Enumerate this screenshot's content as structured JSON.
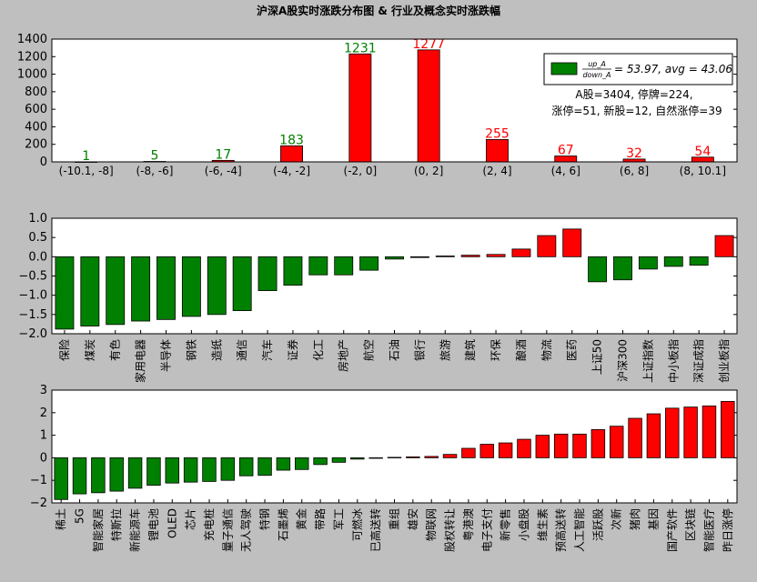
{
  "title": "沪深A股实时涨跌分布图 & 行业及概念实时涨跌幅",
  "chart_data": [
    {
      "type": "bar",
      "categories": [
        "(-10.1, -8]",
        "(-8, -6]",
        "(-6, -4]",
        "(-4, -2]",
        "(-2, 0]",
        "(0, 2]",
        "(2, 4]",
        "(4, 6]",
        "(6, 8]",
        "(8, 10.1]"
      ],
      "values": [
        1,
        5,
        17,
        183,
        1231,
        1277,
        255,
        67,
        32,
        54
      ],
      "value_labels": [
        "1",
        "5",
        "17",
        "183",
        "1231",
        "1277",
        "255",
        "67",
        "32",
        "54"
      ],
      "ylim": [
        0,
        1400
      ],
      "yticks": [
        "0",
        "200",
        "400",
        "600",
        "800",
        "1000",
        "1200",
        "1400"
      ],
      "colors": {
        "down": "#008000",
        "up": "#ff0000"
      },
      "legend": {
        "placement": "top-right",
        "formula_num": "up_A",
        "formula_den": "down_A",
        "formula_rest": "= 53.97, avg = 43.06"
      },
      "annotations": [
        "A股=3404, 停牌=224,",
        "涨停=51, 新股=12, 自然涨停=39"
      ],
      "grid": false
    },
    {
      "type": "bar",
      "categories": [
        "保险",
        "煤炭",
        "有色",
        "家用电器",
        "半导体",
        "钢铁",
        "造纸",
        "通信",
        "汽车",
        "证券",
        "化工",
        "房地产",
        "航空",
        "石油",
        "银行",
        "旅游",
        "建筑",
        "环保",
        "酿酒",
        "物流",
        "医药",
        "上证50",
        "沪深300",
        "上证指数",
        "中小板指",
        "深证成指",
        "创业板指"
      ],
      "values": [
        -1.88,
        -1.8,
        -1.76,
        -1.67,
        -1.63,
        -1.55,
        -1.5,
        -1.4,
        -0.88,
        -0.74,
        -0.47,
        -0.47,
        -0.35,
        -0.06,
        -0.02,
        0.02,
        0.04,
        0.06,
        0.2,
        0.55,
        0.72,
        -0.65,
        -0.6,
        -0.32,
        -0.25,
        -0.22,
        0.55
      ],
      "ylim": [
        -2.0,
        1.0
      ],
      "yticks": [
        "−2.0",
        "−1.5",
        "−1.0",
        "−0.5",
        "0.0",
        "0.5",
        "1.0"
      ],
      "colors": {
        "down": "#008000",
        "up": "#ff0000"
      },
      "grid": false
    },
    {
      "type": "bar",
      "categories": [
        "稀土",
        "5G",
        "智能家居",
        "特斯拉",
        "新能源车",
        "锂电池",
        "OLED",
        "芯片",
        "充电桩",
        "量子通信",
        "无人驾驶",
        "特钢",
        "石墨烯",
        "黄金",
        "带路",
        "军工",
        "可燃冰",
        "已高送转",
        "重组",
        "雄安",
        "物联网",
        "股权转让",
        "粤港澳",
        "电子支付",
        "新零售",
        "小盘股",
        "维生素",
        "预高送转",
        "人工智能",
        "活跃股",
        "次新",
        "猪肉",
        "基因",
        "国产软件",
        "区块链",
        "智能医疗",
        "昨日涨停"
      ],
      "values": [
        -1.85,
        -1.6,
        -1.55,
        -1.48,
        -1.35,
        -1.22,
        -1.12,
        -1.08,
        -1.05,
        -1.0,
        -0.8,
        -0.78,
        -0.55,
        -0.52,
        -0.3,
        -0.2,
        -0.06,
        -0.02,
        0.02,
        0.04,
        0.06,
        0.15,
        0.42,
        0.6,
        0.66,
        0.82,
        1.0,
        1.05,
        1.05,
        1.25,
        1.4,
        1.75,
        1.95,
        2.2,
        2.25,
        2.3,
        2.5
      ],
      "ylim": [
        -2,
        3
      ],
      "yticks": [
        "−2",
        "−1",
        "0",
        "1",
        "2",
        "3"
      ],
      "colors": {
        "down": "#008000",
        "up": "#ff0000"
      },
      "grid": false
    }
  ]
}
